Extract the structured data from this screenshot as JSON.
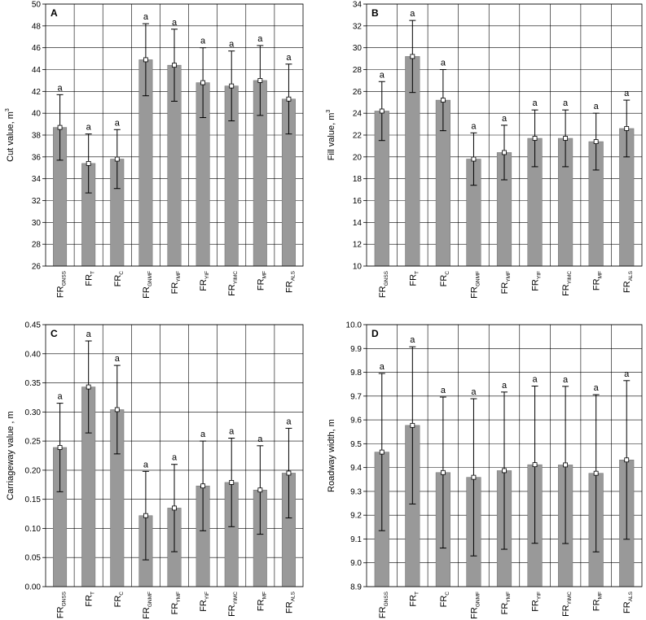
{
  "chart_data": [
    {
      "type": "bar",
      "panel_letter": "A",
      "ylabel": "Cut value, m",
      "ylabel_sup": "3",
      "ylim": [
        26,
        50
      ],
      "ytick_step": 2,
      "ytick_decimals": 0,
      "categories": [
        {
          "base": "FR",
          "sub": "GNSS"
        },
        {
          "base": "FR",
          "sub": "T"
        },
        {
          "base": "FR",
          "sub": "C"
        },
        {
          "base": "FR",
          "sub": "GNMF"
        },
        {
          "base": "FR",
          "sub": "YMF"
        },
        {
          "base": "FR",
          "sub": "YIF"
        },
        {
          "base": "FR",
          "sub": "YIMC"
        },
        {
          "base": "FR",
          "sub": "MF"
        },
        {
          "base": "FR",
          "sub": "ALS"
        }
      ],
      "values": [
        38.7,
        35.4,
        35.8,
        44.9,
        44.4,
        42.8,
        42.5,
        43.0,
        41.3
      ],
      "errors": [
        3.0,
        2.7,
        2.7,
        3.3,
        3.3,
        3.2,
        3.2,
        3.2,
        3.2
      ],
      "annotations": [
        "a",
        "a",
        "a",
        "a",
        "a",
        "a",
        "a",
        "a",
        "a"
      ],
      "grid": true
    },
    {
      "type": "bar",
      "panel_letter": "B",
      "ylabel": "Fill value, m",
      "ylabel_sup": "3",
      "ylim": [
        10,
        34
      ],
      "ytick_step": 2,
      "ytick_decimals": 0,
      "categories": [
        {
          "base": "FR",
          "sub": "GNSS"
        },
        {
          "base": "FR",
          "sub": "T"
        },
        {
          "base": "FR",
          "sub": "C"
        },
        {
          "base": "FR",
          "sub": "GNMF"
        },
        {
          "base": "FR",
          "sub": "YMF"
        },
        {
          "base": "FR",
          "sub": "YIF"
        },
        {
          "base": "FR",
          "sub": "YIMC"
        },
        {
          "base": "FR",
          "sub": "MF"
        },
        {
          "base": "FR",
          "sub": "ALS"
        }
      ],
      "values": [
        24.2,
        29.2,
        25.2,
        19.8,
        20.4,
        21.7,
        21.7,
        21.4,
        22.6
      ],
      "errors": [
        2.7,
        3.3,
        2.8,
        2.4,
        2.5,
        2.6,
        2.6,
        2.6,
        2.6
      ],
      "annotations": [
        "a",
        "a",
        "a",
        "a",
        "a",
        "a",
        "a",
        "a",
        "a"
      ],
      "grid": true
    },
    {
      "type": "bar",
      "panel_letter": "C",
      "ylabel": "Carriageway value , m",
      "ylabel_sup": "",
      "ylim": [
        0,
        0.45
      ],
      "ytick_step": 0.05,
      "ytick_decimals": 2,
      "categories": [
        {
          "base": "FR",
          "sub": "GNSS"
        },
        {
          "base": "FR",
          "sub": "T"
        },
        {
          "base": "FR",
          "sub": "C"
        },
        {
          "base": "FR",
          "sub": "GNMF"
        },
        {
          "base": "FR",
          "sub": "YMF"
        },
        {
          "base": "FR",
          "sub": "YIF"
        },
        {
          "base": "FR",
          "sub": "YIMC"
        },
        {
          "base": "FR",
          "sub": "MF"
        },
        {
          "base": "FR",
          "sub": "ALS"
        }
      ],
      "values": [
        0.239,
        0.343,
        0.304,
        0.122,
        0.135,
        0.173,
        0.179,
        0.166,
        0.195
      ],
      "errors": [
        0.076,
        0.079,
        0.076,
        0.076,
        0.075,
        0.077,
        0.076,
        0.076,
        0.077
      ],
      "annotations": [
        "a",
        "a",
        "a",
        "a",
        "a",
        "a",
        "a",
        "a",
        "a"
      ],
      "grid": true
    },
    {
      "type": "bar",
      "panel_letter": "D",
      "ylabel": "Roadway width, m",
      "ylabel_sup": "",
      "ylim": [
        8.9,
        10.0
      ],
      "ytick_step": 0.1,
      "ytick_decimals": 1,
      "categories": [
        {
          "base": "FR",
          "sub": "GNSS"
        },
        {
          "base": "FR",
          "sub": "T"
        },
        {
          "base": "FR",
          "sub": "C"
        },
        {
          "base": "FR",
          "sub": "GNMF"
        },
        {
          "base": "FR",
          "sub": "YMF"
        },
        {
          "base": "FR",
          "sub": "YIF"
        },
        {
          "base": "FR",
          "sub": "YIMC"
        },
        {
          "base": "FR",
          "sub": "MF"
        },
        {
          "base": "FR",
          "sub": "ALS"
        }
      ],
      "values": [
        9.465,
        9.577,
        9.379,
        9.359,
        9.387,
        9.412,
        9.411,
        9.376,
        9.432
      ],
      "errors": [
        0.33,
        0.33,
        0.317,
        0.33,
        0.33,
        0.33,
        0.33,
        0.33,
        0.333
      ],
      "annotations": [
        "a",
        "a",
        "a",
        "a",
        "a",
        "a",
        "a",
        "a",
        "a"
      ],
      "grid": true
    }
  ],
  "colors": {
    "bar": "#999999",
    "bar_stroke": "#6f6f6f",
    "grid": "#000000",
    "error": "#000000"
  }
}
